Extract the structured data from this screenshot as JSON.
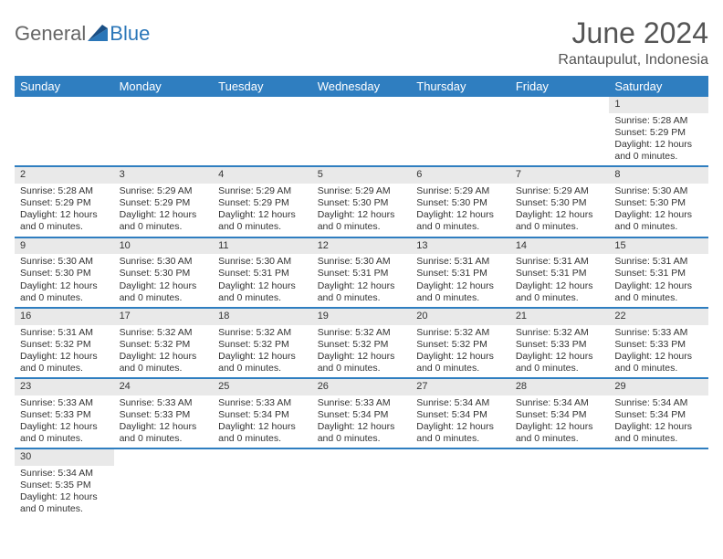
{
  "brand": {
    "general": "General",
    "blue": "Blue"
  },
  "title": "June 2024",
  "location": "Rantaupulut, Indonesia",
  "colors": {
    "header_bg": "#2f7ec0",
    "header_text": "#ffffff",
    "daynum_bg": "#e9e9e9",
    "row_border": "#2f7ec0",
    "text": "#333333",
    "title_text": "#555555"
  },
  "dayHeaders": [
    "Sunday",
    "Monday",
    "Tuesday",
    "Wednesday",
    "Thursday",
    "Friday",
    "Saturday"
  ],
  "weeks": [
    [
      null,
      null,
      null,
      null,
      null,
      null,
      {
        "d": "1",
        "rise": "5:28 AM",
        "set": "5:29 PM",
        "dl": "12 hours and 0 minutes."
      }
    ],
    [
      {
        "d": "2",
        "rise": "5:28 AM",
        "set": "5:29 PM",
        "dl": "12 hours and 0 minutes."
      },
      {
        "d": "3",
        "rise": "5:29 AM",
        "set": "5:29 PM",
        "dl": "12 hours and 0 minutes."
      },
      {
        "d": "4",
        "rise": "5:29 AM",
        "set": "5:29 PM",
        "dl": "12 hours and 0 minutes."
      },
      {
        "d": "5",
        "rise": "5:29 AM",
        "set": "5:30 PM",
        "dl": "12 hours and 0 minutes."
      },
      {
        "d": "6",
        "rise": "5:29 AM",
        "set": "5:30 PM",
        "dl": "12 hours and 0 minutes."
      },
      {
        "d": "7",
        "rise": "5:29 AM",
        "set": "5:30 PM",
        "dl": "12 hours and 0 minutes."
      },
      {
        "d": "8",
        "rise": "5:30 AM",
        "set": "5:30 PM",
        "dl": "12 hours and 0 minutes."
      }
    ],
    [
      {
        "d": "9",
        "rise": "5:30 AM",
        "set": "5:30 PM",
        "dl": "12 hours and 0 minutes."
      },
      {
        "d": "10",
        "rise": "5:30 AM",
        "set": "5:30 PM",
        "dl": "12 hours and 0 minutes."
      },
      {
        "d": "11",
        "rise": "5:30 AM",
        "set": "5:31 PM",
        "dl": "12 hours and 0 minutes."
      },
      {
        "d": "12",
        "rise": "5:30 AM",
        "set": "5:31 PM",
        "dl": "12 hours and 0 minutes."
      },
      {
        "d": "13",
        "rise": "5:31 AM",
        "set": "5:31 PM",
        "dl": "12 hours and 0 minutes."
      },
      {
        "d": "14",
        "rise": "5:31 AM",
        "set": "5:31 PM",
        "dl": "12 hours and 0 minutes."
      },
      {
        "d": "15",
        "rise": "5:31 AM",
        "set": "5:31 PM",
        "dl": "12 hours and 0 minutes."
      }
    ],
    [
      {
        "d": "16",
        "rise": "5:31 AM",
        "set": "5:32 PM",
        "dl": "12 hours and 0 minutes."
      },
      {
        "d": "17",
        "rise": "5:32 AM",
        "set": "5:32 PM",
        "dl": "12 hours and 0 minutes."
      },
      {
        "d": "18",
        "rise": "5:32 AM",
        "set": "5:32 PM",
        "dl": "12 hours and 0 minutes."
      },
      {
        "d": "19",
        "rise": "5:32 AM",
        "set": "5:32 PM",
        "dl": "12 hours and 0 minutes."
      },
      {
        "d": "20",
        "rise": "5:32 AM",
        "set": "5:32 PM",
        "dl": "12 hours and 0 minutes."
      },
      {
        "d": "21",
        "rise": "5:32 AM",
        "set": "5:33 PM",
        "dl": "12 hours and 0 minutes."
      },
      {
        "d": "22",
        "rise": "5:33 AM",
        "set": "5:33 PM",
        "dl": "12 hours and 0 minutes."
      }
    ],
    [
      {
        "d": "23",
        "rise": "5:33 AM",
        "set": "5:33 PM",
        "dl": "12 hours and 0 minutes."
      },
      {
        "d": "24",
        "rise": "5:33 AM",
        "set": "5:33 PM",
        "dl": "12 hours and 0 minutes."
      },
      {
        "d": "25",
        "rise": "5:33 AM",
        "set": "5:34 PM",
        "dl": "12 hours and 0 minutes."
      },
      {
        "d": "26",
        "rise": "5:33 AM",
        "set": "5:34 PM",
        "dl": "12 hours and 0 minutes."
      },
      {
        "d": "27",
        "rise": "5:34 AM",
        "set": "5:34 PM",
        "dl": "12 hours and 0 minutes."
      },
      {
        "d": "28",
        "rise": "5:34 AM",
        "set": "5:34 PM",
        "dl": "12 hours and 0 minutes."
      },
      {
        "d": "29",
        "rise": "5:34 AM",
        "set": "5:34 PM",
        "dl": "12 hours and 0 minutes."
      }
    ],
    [
      {
        "d": "30",
        "rise": "5:34 AM",
        "set": "5:35 PM",
        "dl": "12 hours and 0 minutes."
      },
      null,
      null,
      null,
      null,
      null,
      null
    ]
  ],
  "labels": {
    "sunrise": "Sunrise:",
    "sunset": "Sunset:",
    "daylight": "Daylight:"
  }
}
